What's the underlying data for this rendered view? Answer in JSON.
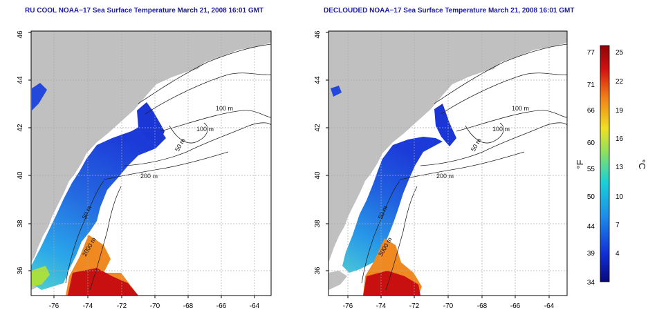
{
  "panels": [
    {
      "title": "RU COOL NOAA−17 Sea Surface Temperature March 21, 2008 16:01 GMT",
      "contours": [
        "100 m",
        "100 m",
        "50 m",
        "200 m",
        "50 m",
        "2000 m"
      ]
    },
    {
      "title": "DECLOUDED NOAA−17 Sea Surface Temperature March 21, 2008 16:01 GMT",
      "contours": [
        "100 m",
        "100 m",
        "50 m",
        "200 m",
        "50 m",
        "3000 m"
      ]
    }
  ],
  "axes": {
    "x_ticks": [
      "-76",
      "-74",
      "-72",
      "-70",
      "-68",
      "-66",
      "-64"
    ],
    "y_ticks": [
      "36",
      "38",
      "40",
      "42",
      "44",
      "46"
    ]
  },
  "colorbar": {
    "label_f": "°F",
    "label_c": "°C",
    "f_ticks": [
      "77",
      "71",
      "66",
      "60",
      "55",
      "50",
      "44",
      "39",
      "34"
    ],
    "c_ticks": [
      "25",
      "22",
      "19",
      "16",
      "13",
      "10",
      "7",
      "4"
    ]
  },
  "colors": {
    "land": "#c0c0c0",
    "title": "#1a1aa6",
    "colorbar_stops": [
      "#08087a",
      "#1030d8",
      "#1e8ee8",
      "#18d0d8",
      "#8ee060",
      "#f0e020",
      "#f08018",
      "#d41010",
      "#8a0606"
    ]
  }
}
